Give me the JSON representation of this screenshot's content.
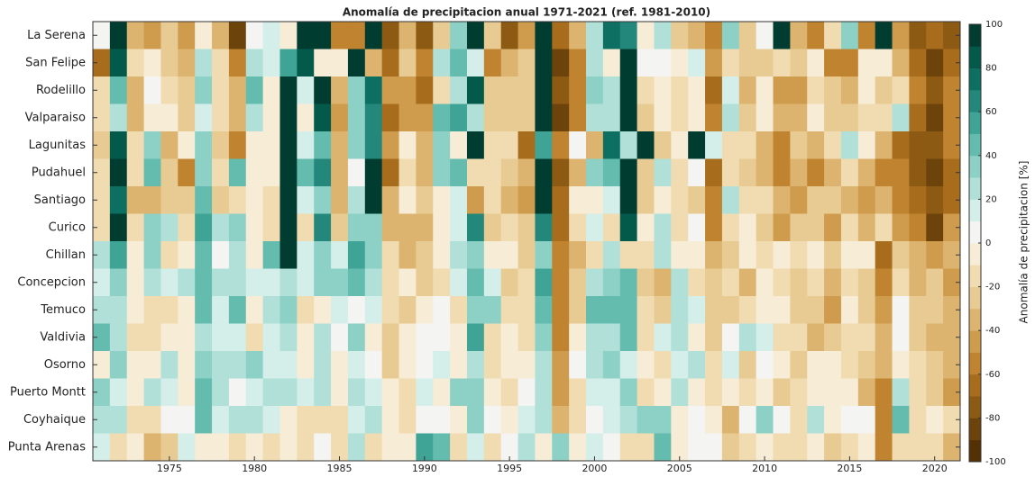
{
  "chart_data": {
    "type": "heatmap",
    "title": "Anomalía de precipitacion anual 1971-2021 (ref. 1981-2010)",
    "colorbar_label": "Anomalía de precipitacion [%]",
    "x": [
      1971,
      1972,
      1973,
      1974,
      1975,
      1976,
      1977,
      1978,
      1979,
      1980,
      1981,
      1982,
      1983,
      1984,
      1985,
      1986,
      1987,
      1988,
      1989,
      1990,
      1991,
      1992,
      1993,
      1994,
      1995,
      1996,
      1997,
      1998,
      1999,
      2000,
      2001,
      2002,
      2003,
      2004,
      2005,
      2006,
      2007,
      2008,
      2009,
      2010,
      2011,
      2012,
      2013,
      2014,
      2015,
      2016,
      2017,
      2018,
      2019,
      2020,
      2021
    ],
    "xlim": [
      1970.5,
      2021.5
    ],
    "xticks": [
      1975,
      1980,
      1985,
      1990,
      1995,
      2000,
      2005,
      2010,
      2015,
      2020
    ],
    "categories": [
      "La Serena",
      "San Felipe",
      "Rodelillo",
      "Valparaiso",
      "Lagunitas",
      "Pudahuel",
      "Santiago",
      "Curico",
      "Chillan",
      "Concepcion",
      "Temuco",
      "Valdivia",
      "Osorno",
      "Puerto Montt",
      "Coyhaique",
      "Punta Arenas"
    ],
    "z": [
      [
        0,
        90,
        -40,
        -50,
        -30,
        -50,
        -5,
        -40,
        -90,
        0,
        10,
        -5,
        90,
        90,
        -60,
        -60,
        100,
        -80,
        -40,
        -80,
        -30,
        30,
        100,
        -30,
        -80,
        -50,
        100,
        -70,
        -40,
        20,
        70,
        60,
        -5,
        20,
        -30,
        -40,
        -60,
        30,
        -30,
        0,
        90,
        -40,
        -60,
        -20,
        30,
        -60,
        100,
        -50,
        -80,
        -70,
        -80
      ],
      [
        -70,
        80,
        -20,
        -10,
        -30,
        -40,
        20,
        -20,
        -60,
        20,
        10,
        50,
        80,
        -10,
        -10,
        100,
        -40,
        -70,
        -30,
        -60,
        20,
        40,
        10,
        -60,
        -40,
        -30,
        100,
        -90,
        -60,
        20,
        -10,
        100,
        0,
        0,
        -10,
        10,
        -50,
        -20,
        -30,
        -30,
        -20,
        -30,
        -10,
        -60,
        -60,
        -10,
        -5,
        -40,
        -70,
        -90,
        -70
      ],
      [
        -20,
        40,
        -40,
        0,
        -20,
        -30,
        30,
        -20,
        -40,
        40,
        -10,
        100,
        10,
        90,
        -40,
        30,
        70,
        -50,
        -50,
        -70,
        -20,
        20,
        80,
        -30,
        -30,
        -30,
        100,
        -80,
        -60,
        30,
        20,
        100,
        -20,
        -10,
        -20,
        -10,
        -70,
        10,
        -40,
        -10,
        -50,
        -50,
        -20,
        -30,
        -40,
        -10,
        -30,
        -20,
        -60,
        -80,
        -60
      ],
      [
        -20,
        20,
        -40,
        -10,
        -10,
        -30,
        10,
        -20,
        -40,
        20,
        -10,
        90,
        -10,
        80,
        -50,
        30,
        60,
        -70,
        -50,
        -50,
        40,
        50,
        20,
        -30,
        -30,
        -30,
        100,
        -90,
        -60,
        20,
        20,
        100,
        -30,
        -10,
        -20,
        -10,
        -60,
        20,
        -30,
        -10,
        -40,
        -40,
        -10,
        -30,
        -30,
        -20,
        -20,
        20,
        -70,
        -90,
        -60
      ],
      [
        -30,
        80,
        -20,
        30,
        -40,
        -10,
        30,
        -30,
        -60,
        -10,
        -10,
        100,
        10,
        40,
        -40,
        30,
        60,
        -50,
        -10,
        -40,
        30,
        -10,
        100,
        -20,
        -20,
        -70,
        50,
        -60,
        0,
        -40,
        70,
        20,
        100,
        -30,
        -10,
        90,
        10,
        -20,
        -20,
        -40,
        -60,
        -30,
        -40,
        -20,
        20,
        -10,
        -40,
        -70,
        -80,
        -80,
        -60
      ],
      [
        -20,
        100,
        -20,
        40,
        -30,
        -60,
        30,
        -20,
        40,
        -10,
        -10,
        100,
        40,
        60,
        -40,
        0,
        100,
        -70,
        -20,
        -40,
        30,
        40,
        -20,
        -20,
        -30,
        -40,
        100,
        -80,
        -40,
        30,
        40,
        100,
        -30,
        20,
        -20,
        0,
        -70,
        -20,
        -30,
        -40,
        -60,
        -40,
        -60,
        -40,
        -20,
        -40,
        -60,
        -60,
        -80,
        -90,
        -70
      ],
      [
        -20,
        70,
        -40,
        -40,
        -30,
        -30,
        40,
        -30,
        -20,
        -10,
        -20,
        100,
        10,
        30,
        -40,
        20,
        100,
        -40,
        -10,
        -30,
        -10,
        10,
        -50,
        -20,
        -40,
        -50,
        100,
        -70,
        -10,
        -10,
        10,
        90,
        -30,
        -10,
        -20,
        -30,
        -60,
        20,
        -20,
        -20,
        -40,
        -50,
        -30,
        -30,
        -40,
        -50,
        -40,
        -60,
        -70,
        -80,
        -70
      ],
      [
        -20,
        100,
        -20,
        30,
        20,
        -20,
        50,
        20,
        30,
        -10,
        -20,
        90,
        -20,
        60,
        -30,
        30,
        30,
        -40,
        -40,
        -40,
        -10,
        10,
        60,
        -30,
        -20,
        -30,
        60,
        -70,
        -20,
        10,
        -20,
        80,
        -10,
        20,
        -20,
        0,
        -60,
        -20,
        -10,
        -30,
        -50,
        -30,
        -30,
        -50,
        -20,
        -40,
        -20,
        -50,
        -60,
        -90,
        -50
      ],
      [
        20,
        50,
        -10,
        30,
        -20,
        -10,
        40,
        0,
        20,
        -10,
        40,
        90,
        10,
        30,
        10,
        50,
        30,
        -20,
        -40,
        -30,
        -10,
        20,
        30,
        -10,
        -10,
        -30,
        30,
        -60,
        -40,
        -20,
        20,
        -20,
        -20,
        20,
        -10,
        -10,
        -40,
        -30,
        -10,
        -20,
        -10,
        -20,
        -10,
        -30,
        -10,
        -10,
        -70,
        -30,
        -40,
        -50,
        -40
      ],
      [
        10,
        30,
        -10,
        20,
        10,
        20,
        40,
        20,
        20,
        10,
        10,
        20,
        10,
        30,
        30,
        40,
        20,
        -20,
        -10,
        -30,
        -20,
        10,
        40,
        10,
        -30,
        -20,
        50,
        -60,
        -30,
        20,
        30,
        40,
        -30,
        -40,
        20,
        -20,
        -30,
        -20,
        -40,
        -10,
        -20,
        -30,
        -20,
        -40,
        -20,
        -30,
        -60,
        -20,
        -40,
        -30,
        -50
      ],
      [
        20,
        20,
        -10,
        -20,
        -20,
        -10,
        40,
        10,
        40,
        -10,
        20,
        30,
        -20,
        -10,
        10,
        0,
        10,
        -20,
        -30,
        -10,
        0,
        -20,
        30,
        30,
        -20,
        -20,
        40,
        -60,
        -30,
        40,
        40,
        40,
        -20,
        -30,
        20,
        10,
        -30,
        -30,
        -20,
        -10,
        -10,
        -30,
        -30,
        -50,
        -10,
        -30,
        -50,
        0,
        -30,
        -30,
        -40
      ],
      [
        40,
        20,
        -20,
        -20,
        -10,
        -10,
        20,
        10,
        10,
        -20,
        10,
        20,
        -10,
        20,
        0,
        30,
        -10,
        -30,
        -10,
        0,
        0,
        -10,
        50,
        -20,
        -10,
        -20,
        30,
        -60,
        -10,
        20,
        20,
        40,
        -20,
        10,
        20,
        -10,
        -30,
        0,
        20,
        10,
        -20,
        -20,
        -40,
        -30,
        -20,
        -20,
        -40,
        0,
        -30,
        -40,
        -40
      ],
      [
        -10,
        30,
        -10,
        -10,
        20,
        -10,
        30,
        20,
        20,
        30,
        10,
        10,
        -10,
        20,
        -10,
        10,
        0,
        -30,
        -10,
        0,
        10,
        -10,
        20,
        -20,
        -10,
        -10,
        20,
        -50,
        0,
        20,
        30,
        10,
        -10,
        -20,
        10,
        20,
        -20,
        10,
        -30,
        0,
        -10,
        -30,
        -10,
        -10,
        -20,
        -30,
        -40,
        -10,
        -20,
        -30,
        -40
      ],
      [
        30,
        10,
        -10,
        20,
        10,
        -10,
        40,
        20,
        0,
        10,
        20,
        20,
        10,
        20,
        -10,
        20,
        10,
        -10,
        -20,
        10,
        -10,
        30,
        30,
        -10,
        -20,
        0,
        20,
        -50,
        -20,
        10,
        10,
        30,
        -20,
        -10,
        20,
        -10,
        -20,
        -10,
        -20,
        -10,
        -30,
        -20,
        -10,
        -10,
        -10,
        -40,
        -60,
        20,
        -20,
        -30,
        -50
      ],
      [
        20,
        20,
        -20,
        -20,
        0,
        0,
        40,
        10,
        20,
        20,
        10,
        -10,
        -20,
        -20,
        -20,
        10,
        20,
        -10,
        -20,
        0,
        0,
        -10,
        30,
        0,
        -10,
        10,
        20,
        -40,
        -20,
        0,
        10,
        20,
        30,
        30,
        -10,
        0,
        -10,
        -40,
        0,
        30,
        0,
        -20,
        20,
        -10,
        0,
        0,
        -60,
        40,
        -20,
        -10,
        -20
      ],
      [
        10,
        -20,
        -10,
        -40,
        -30,
        10,
        -10,
        -10,
        -20,
        -10,
        -20,
        -10,
        -20,
        0,
        -20,
        20,
        -20,
        -10,
        -10,
        50,
        40,
        -20,
        10,
        -20,
        0,
        20,
        -10,
        30,
        -10,
        10,
        0,
        -20,
        -20,
        40,
        -10,
        0,
        0,
        -30,
        -20,
        -10,
        -20,
        -20,
        -10,
        -30,
        -20,
        -10,
        -60,
        -20,
        -20,
        -20,
        -40
      ]
    ],
    "clim": [
      -100,
      100
    ],
    "cticks": [
      -100,
      -80,
      -60,
      -40,
      -20,
      0,
      20,
      40,
      60,
      80,
      100
    ],
    "colormap": [
      "#543005",
      "#6d430c",
      "#8c5a12",
      "#a86c1d",
      "#c0832f",
      "#cf9c4d",
      "#dcb46f",
      "#e8cb92",
      "#f1dcb2",
      "#f7ecd6",
      "#f4f4f2",
      "#d4eee9",
      "#b0e0d8",
      "#8dd1c6",
      "#64bcaf",
      "#3fa496",
      "#23887b",
      "#0d6f61",
      "#035a4b",
      "#003c30"
    ]
  }
}
